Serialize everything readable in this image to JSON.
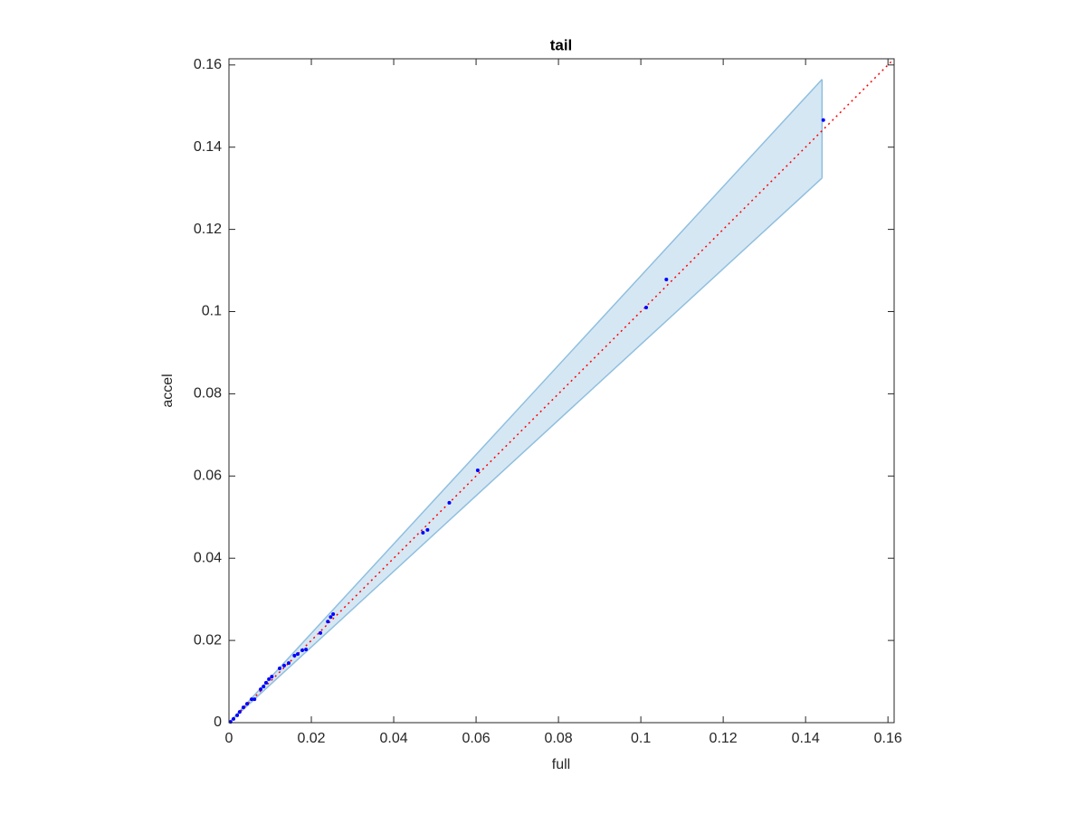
{
  "chart_data": {
    "type": "scatter",
    "title": "tail",
    "x_label": "full",
    "y_label": "accel",
    "xlim": [
      0,
      0.1615
    ],
    "ylim": [
      0,
      0.1615
    ],
    "xticks": [
      0,
      0.02,
      0.04,
      0.06,
      0.08,
      0.1,
      0.12,
      0.14,
      0.16
    ],
    "yticks": [
      0,
      0.02,
      0.04,
      0.06,
      0.08,
      0.1,
      0.12,
      0.14,
      0.16
    ],
    "color": "#0000ff",
    "x": [
      0.1443,
      0.1062,
      0.1013,
      0.0604,
      0.0535,
      0.0482,
      0.0471,
      0.0253,
      0.0247,
      0.024,
      0.0222,
      0.0187,
      0.0178,
      0.0167,
      0.0159,
      0.0145,
      0.0134,
      0.0123,
      0.0104,
      0.0097,
      0.009,
      0.0084,
      0.0077,
      0.0062,
      0.0055,
      0.0044,
      0.0035,
      0.0026,
      0.002,
      0.0011,
      0.0004
    ],
    "values": [
      0.1466,
      0.1078,
      0.101,
      0.0614,
      0.0535,
      0.0469,
      0.0462,
      0.0264,
      0.0257,
      0.0246,
      0.0218,
      0.0178,
      0.0176,
      0.0167,
      0.0163,
      0.0145,
      0.0139,
      0.0132,
      0.0112,
      0.0106,
      0.0097,
      0.0088,
      0.0081,
      0.0057,
      0.0057,
      0.0046,
      0.0037,
      0.0026,
      0.0018,
      0.0009,
      0.0002
    ],
    "band": {
      "color": "#8fbfdf",
      "fill": "#d6e7f4",
      "x": [
        0,
        0.144
      ],
      "upper": [
        0,
        0.1565
      ],
      "lower": [
        0,
        0.1325
      ]
    },
    "reference": {
      "color": "#ff0000",
      "x": [
        0,
        0.1615
      ],
      "y": [
        0,
        0.1615
      ]
    }
  }
}
